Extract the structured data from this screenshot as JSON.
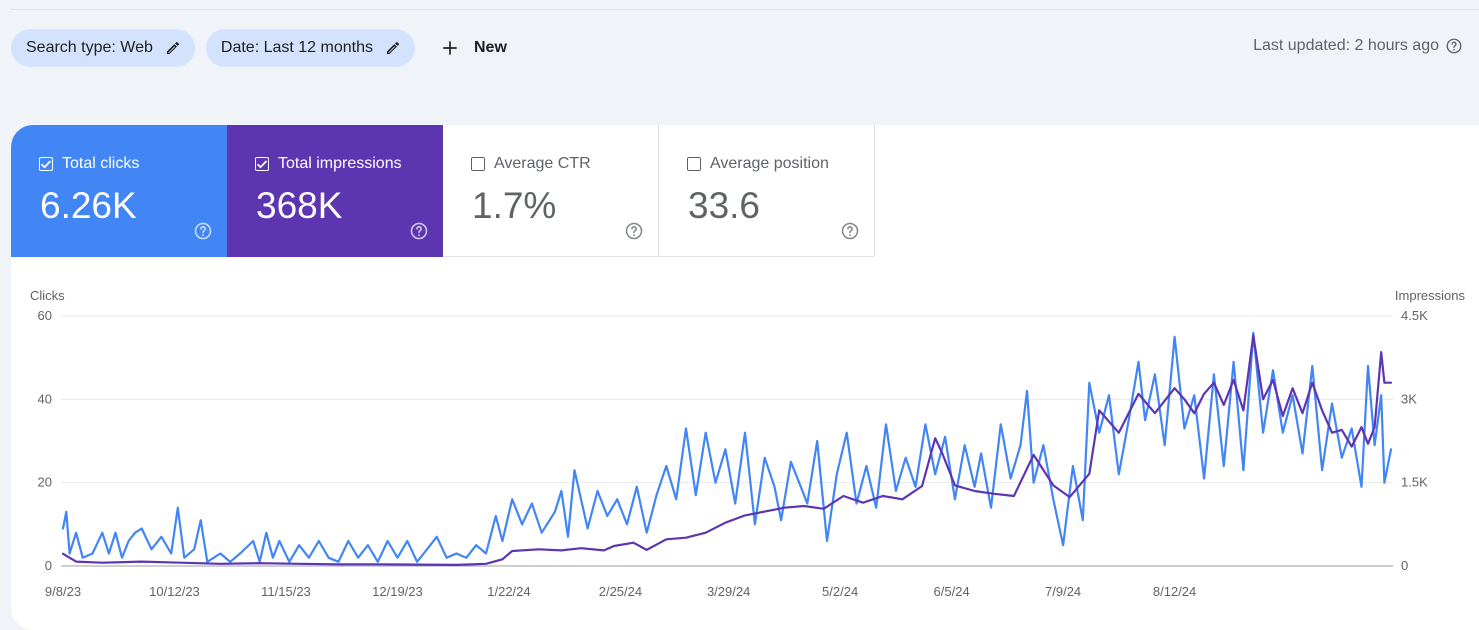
{
  "filters": {
    "search_type": "Search type: Web",
    "date": "Date: Last 12 months",
    "new_label": "New"
  },
  "status": {
    "last_updated": "Last updated: 2 hours ago"
  },
  "metrics": [
    {
      "label": "Total clicks",
      "value": "6.26K",
      "checked": true,
      "color": "#4285f4"
    },
    {
      "label": "Total impressions",
      "value": "368K",
      "checked": true,
      "color": "#5e35b1"
    },
    {
      "label": "Average CTR",
      "value": "1.7%",
      "checked": false
    },
    {
      "label": "Average position",
      "value": "33.6",
      "checked": false
    }
  ],
  "chart_data": {
    "type": "line",
    "ylabel_left": "Clicks",
    "ylabel_right": "Impressions",
    "y_left_ticks": [
      "0",
      "20",
      "40",
      "60"
    ],
    "y_right_ticks": [
      "0",
      "1.5K",
      "3K",
      "4.5K"
    ],
    "ylim_left": [
      0,
      60
    ],
    "ylim_right": [
      0,
      4500
    ],
    "x_tick_labels": [
      "9/8/23",
      "10/12/23",
      "11/15/23",
      "12/19/23",
      "1/22/24",
      "2/25/24",
      "3/29/24",
      "5/2/24",
      "6/5/24",
      "7/9/24",
      "8/12/24"
    ],
    "x_ticks_index": [
      0,
      34,
      68,
      102,
      136,
      170,
      203,
      237,
      271,
      305,
      339
    ],
    "grid": true,
    "series": [
      {
        "name": "Total clicks",
        "axis": "left",
        "color": "#4285f4",
        "anchors": [
          [
            0,
            9
          ],
          [
            1,
            13
          ],
          [
            2,
            3
          ],
          [
            4,
            8
          ],
          [
            6,
            2
          ],
          [
            9,
            3
          ],
          [
            12,
            8
          ],
          [
            14,
            3
          ],
          [
            16,
            8
          ],
          [
            18,
            2
          ],
          [
            20,
            6
          ],
          [
            22,
            8
          ],
          [
            24,
            9
          ],
          [
            27,
            4
          ],
          [
            30,
            7
          ],
          [
            33,
            3
          ],
          [
            35,
            14
          ],
          [
            37,
            2
          ],
          [
            40,
            4
          ],
          [
            42,
            11
          ],
          [
            44,
            1
          ],
          [
            48,
            3
          ],
          [
            51,
            1
          ],
          [
            54,
            3
          ],
          [
            58,
            6
          ],
          [
            60,
            1
          ],
          [
            62,
            8
          ],
          [
            64,
            2
          ],
          [
            66,
            6
          ],
          [
            69,
            1
          ],
          [
            72,
            5
          ],
          [
            75,
            2
          ],
          [
            78,
            6
          ],
          [
            81,
            2
          ],
          [
            84,
            1
          ],
          [
            87,
            6
          ],
          [
            90,
            2
          ],
          [
            93,
            5
          ],
          [
            96,
            1
          ],
          [
            99,
            6
          ],
          [
            102,
            2
          ],
          [
            105,
            6
          ],
          [
            108,
            1
          ],
          [
            111,
            4
          ],
          [
            114,
            7
          ],
          [
            117,
            2
          ],
          [
            120,
            3
          ],
          [
            123,
            2
          ],
          [
            126,
            5
          ],
          [
            129,
            3
          ],
          [
            132,
            12
          ],
          [
            134,
            6
          ],
          [
            137,
            16
          ],
          [
            140,
            10
          ],
          [
            143,
            15
          ],
          [
            146,
            8
          ],
          [
            150,
            13
          ],
          [
            152,
            18
          ],
          [
            154,
            7
          ],
          [
            156,
            23
          ],
          [
            160,
            9
          ],
          [
            163,
            18
          ],
          [
            166,
            12
          ],
          [
            169,
            16
          ],
          [
            172,
            10
          ],
          [
            175,
            19
          ],
          [
            178,
            8
          ],
          [
            181,
            17
          ],
          [
            184,
            24
          ],
          [
            187,
            16
          ],
          [
            190,
            33
          ],
          [
            193,
            17
          ],
          [
            196,
            32
          ],
          [
            199,
            20
          ],
          [
            202,
            28
          ],
          [
            205,
            15
          ],
          [
            208,
            32
          ],
          [
            211,
            10
          ],
          [
            214,
            26
          ],
          [
            217,
            19
          ],
          [
            219,
            11
          ],
          [
            222,
            25
          ],
          [
            225,
            19
          ],
          [
            227,
            15
          ],
          [
            230,
            30
          ],
          [
            233,
            6
          ],
          [
            236,
            22
          ],
          [
            239,
            32
          ],
          [
            242,
            15
          ],
          [
            245,
            24
          ],
          [
            248,
            14
          ],
          [
            251,
            34
          ],
          [
            254,
            18
          ],
          [
            257,
            26
          ],
          [
            260,
            19
          ],
          [
            263,
            34
          ],
          [
            266,
            22
          ],
          [
            269,
            31
          ],
          [
            272,
            16
          ],
          [
            275,
            29
          ],
          [
            278,
            19
          ],
          [
            280,
            27
          ],
          [
            283,
            14
          ],
          [
            286,
            34
          ],
          [
            289,
            21
          ],
          [
            292,
            29
          ],
          [
            294,
            42
          ],
          [
            296,
            20
          ],
          [
            299,
            29
          ],
          [
            302,
            16
          ],
          [
            305,
            5
          ],
          [
            308,
            24
          ],
          [
            311,
            11
          ],
          [
            313,
            44
          ],
          [
            316,
            32
          ],
          [
            319,
            41
          ],
          [
            322,
            22
          ],
          [
            325,
            35
          ],
          [
            328,
            49
          ],
          [
            330,
            35
          ],
          [
            333,
            46
          ],
          [
            336,
            29
          ],
          [
            339,
            55
          ],
          [
            342,
            33
          ],
          [
            345,
            41
          ],
          [
            348,
            21
          ],
          [
            351,
            46
          ],
          [
            354,
            24
          ],
          [
            357,
            49
          ],
          [
            360,
            23
          ],
          [
            363,
            56
          ],
          [
            366,
            32
          ],
          [
            369,
            47
          ],
          [
            372,
            32
          ],
          [
            375,
            41
          ],
          [
            378,
            27
          ],
          [
            381,
            48
          ],
          [
            384,
            23
          ],
          [
            387,
            39
          ],
          [
            390,
            26
          ],
          [
            393,
            33
          ],
          [
            396,
            19
          ],
          [
            398,
            48
          ],
          [
            400,
            29
          ],
          [
            402,
            41
          ],
          [
            403,
            20
          ],
          [
            405,
            28
          ]
        ]
      },
      {
        "name": "Total impressions",
        "axis": "right",
        "color": "#5e35b1",
        "anchors": [
          [
            0,
            220
          ],
          [
            4,
            80
          ],
          [
            12,
            60
          ],
          [
            24,
            80
          ],
          [
            36,
            60
          ],
          [
            48,
            40
          ],
          [
            60,
            50
          ],
          [
            72,
            40
          ],
          [
            84,
            30
          ],
          [
            96,
            30
          ],
          [
            108,
            25
          ],
          [
            120,
            20
          ],
          [
            129,
            40
          ],
          [
            134,
            120
          ],
          [
            137,
            270
          ],
          [
            145,
            300
          ],
          [
            152,
            280
          ],
          [
            158,
            320
          ],
          [
            165,
            280
          ],
          [
            168,
            360
          ],
          [
            174,
            420
          ],
          [
            178,
            290
          ],
          [
            184,
            480
          ],
          [
            190,
            510
          ],
          [
            196,
            600
          ],
          [
            202,
            780
          ],
          [
            208,
            910
          ],
          [
            214,
            980
          ],
          [
            220,
            1050
          ],
          [
            226,
            1080
          ],
          [
            232,
            1030
          ],
          [
            238,
            1260
          ],
          [
            244,
            1140
          ],
          [
            250,
            1260
          ],
          [
            256,
            1200
          ],
          [
            262,
            1440
          ],
          [
            266,
            2300
          ],
          [
            268,
            2050
          ],
          [
            272,
            1450
          ],
          [
            278,
            1350
          ],
          [
            284,
            1300
          ],
          [
            290,
            1260
          ],
          [
            296,
            2000
          ],
          [
            302,
            1450
          ],
          [
            307,
            1240
          ],
          [
            313,
            1660
          ],
          [
            316,
            2800
          ],
          [
            322,
            2400
          ],
          [
            328,
            3100
          ],
          [
            333,
            2750
          ],
          [
            339,
            3200
          ],
          [
            342,
            3000
          ],
          [
            345,
            2750
          ],
          [
            348,
            3100
          ],
          [
            351,
            3300
          ],
          [
            354,
            2900
          ],
          [
            357,
            3350
          ],
          [
            360,
            2800
          ],
          [
            363,
            4150
          ],
          [
            366,
            3000
          ],
          [
            369,
            3350
          ],
          [
            372,
            2700
          ],
          [
            375,
            3200
          ],
          [
            378,
            2750
          ],
          [
            381,
            3300
          ],
          [
            384,
            2800
          ],
          [
            387,
            2400
          ],
          [
            390,
            2450
          ],
          [
            393,
            2150
          ],
          [
            396,
            2500
          ],
          [
            398,
            2200
          ],
          [
            400,
            2500
          ],
          [
            402,
            3850
          ],
          [
            403,
            3300
          ],
          [
            405,
            3300
          ]
        ]
      }
    ]
  }
}
